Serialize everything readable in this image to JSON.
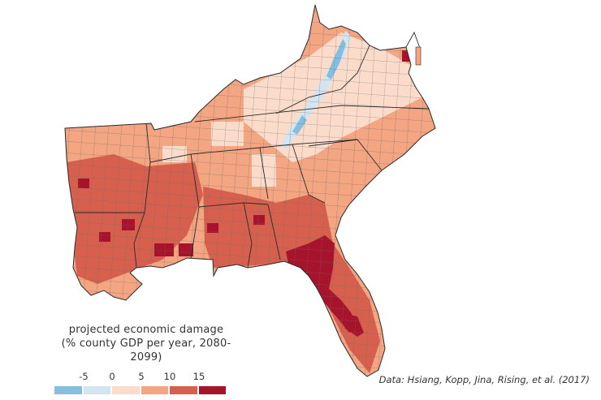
{
  "legend": {
    "title_line1": "projected economic damage",
    "title_line2": "(% county GDP per year, 2080-2099)",
    "ticks": [
      "-5",
      "0",
      "5",
      "10",
      "15"
    ],
    "colors": [
      "#86bedf",
      "#d2e6f2",
      "#fbdccb",
      "#f4a582",
      "#d6604d",
      "#a6132a"
    ]
  },
  "source": "Data: Hsiang, Kopp, Jina, Rising, et al. (2017)",
  "map": {
    "state_outline_color": "#2a2a2a",
    "county_line_color": "#6b6b6b"
  }
}
